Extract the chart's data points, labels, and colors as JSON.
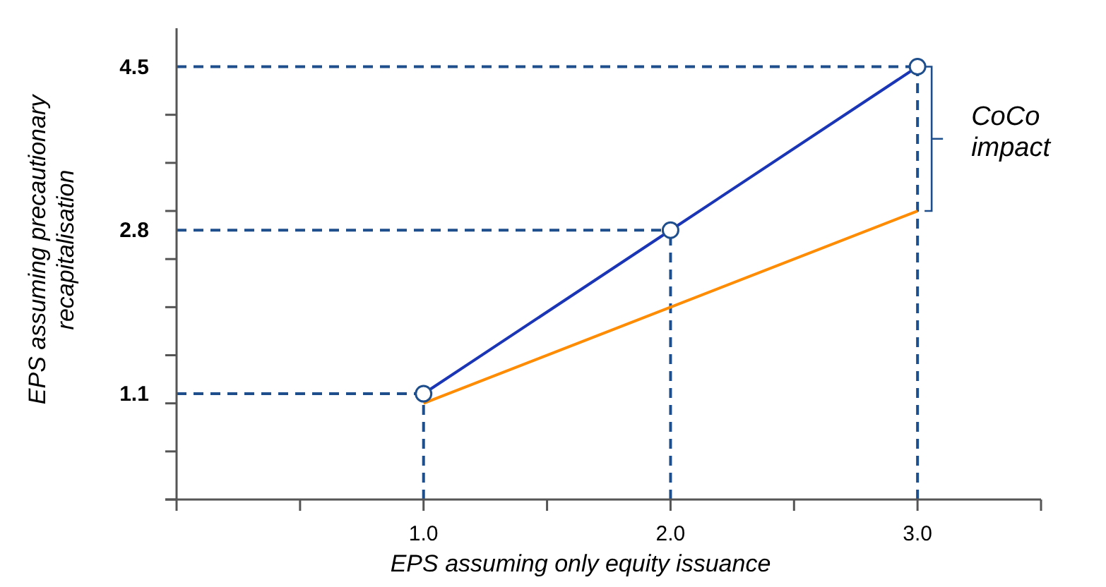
{
  "chart_data": {
    "type": "line",
    "xlabel": "EPS assuming only equity issuance",
    "ylabel": "EPS assuming precautionary recapitalisation",
    "xlim": [
      0,
      3.5
    ],
    "ylim": [
      0,
      4.9
    ],
    "xticks": [
      {
        "value": 0,
        "label": null
      },
      {
        "value": 0.5,
        "label": null
      },
      {
        "value": 1,
        "label": "1.0"
      },
      {
        "value": 1.5,
        "label": null
      },
      {
        "value": 2,
        "label": "2.0"
      },
      {
        "value": 2.5,
        "label": null
      },
      {
        "value": 3,
        "label": "3.0"
      },
      {
        "value": 3.5,
        "label": null
      }
    ],
    "yticks": [
      {
        "value": 0,
        "label": null
      },
      {
        "value": 0.5,
        "label": null
      },
      {
        "value": 1,
        "label": null
      },
      1.1,
      {
        "value": 1.5,
        "label": null
      },
      {
        "value": 2,
        "label": null
      },
      {
        "value": 2.5,
        "label": null
      },
      2.8,
      {
        "value": 3,
        "label": null
      },
      {
        "value": 3.5,
        "label": null
      },
      {
        "value": 4,
        "label": null
      },
      4.5
    ],
    "series": [
      {
        "color": "#1a35b5",
        "x": [
          1,
          2,
          3
        ],
        "values": [
          1.1,
          2.8,
          4.5
        ],
        "marker": "circle"
      },
      {
        "color": "#ff8c00",
        "x": [
          1,
          3
        ],
        "values": [
          1.0,
          3.0
        ],
        "marker": "none"
      }
    ],
    "ref_lines": [
      {
        "axis": "x",
        "value": 1,
        "color": "#1f4e8c",
        "line_style": "dashed"
      },
      {
        "axis": "x",
        "value": 2,
        "color": "#1f4e8c",
        "line_style": "dashed"
      },
      {
        "axis": "x",
        "value": 3,
        "color": "#1f4e8c",
        "line_style": "dashed"
      },
      {
        "axis": "y",
        "value": 1.1,
        "color": "#1f4e8c",
        "line_style": "dashed"
      },
      {
        "axis": "y",
        "value": 2.8,
        "color": "#1f4e8c",
        "line_style": "dashed"
      },
      {
        "axis": "y",
        "value": 4.5,
        "color": "#1f4e8c",
        "line_style": "dashed"
      }
    ],
    "annotations": [
      {
        "text": "CoCo impact",
        "x": 3,
        "y": 3.75
      }
    ],
    "grid": false
  }
}
